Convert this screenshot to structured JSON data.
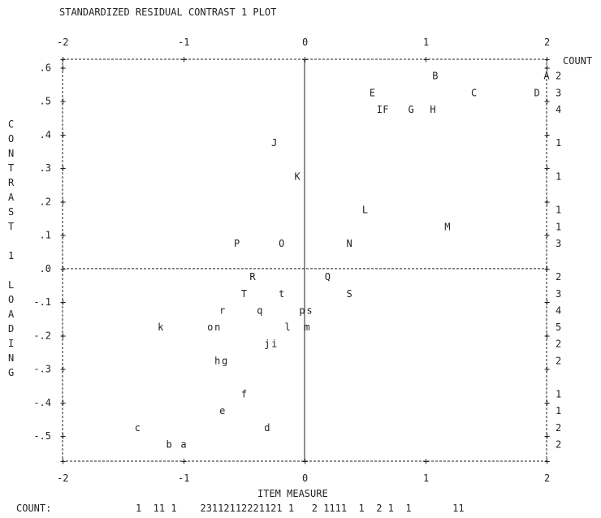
{
  "chart_data": {
    "type": "scatter",
    "title": "STANDARDIZED RESIDUAL CONTRAST 1 PLOT",
    "xlabel": "ITEM MEASURE",
    "ylabel_letters": [
      "C",
      "O",
      "N",
      "T",
      "R",
      "A",
      "S",
      "T",
      "",
      "1",
      "",
      "L",
      "O",
      "A",
      "D",
      "I",
      "N",
      "G"
    ],
    "xlim": [
      -2,
      2
    ],
    "ylim": [
      -0.575,
      0.625
    ],
    "x_ticks": [
      {
        "value": -2,
        "label": "-2"
      },
      {
        "value": -1,
        "label": "-1"
      },
      {
        "value": 0,
        "label": "0"
      },
      {
        "value": 1,
        "label": "1"
      },
      {
        "value": 2,
        "label": "2"
      }
    ],
    "y_ticks": [
      {
        "value": 0.6,
        "label": ".6"
      },
      {
        "value": 0.5,
        "label": ".5"
      },
      {
        "value": 0.4,
        "label": ".4"
      },
      {
        "value": 0.3,
        "label": ".3"
      },
      {
        "value": 0.2,
        "label": ".2"
      },
      {
        "value": 0.1,
        "label": ".1"
      },
      {
        "value": 0.0,
        "label": ".0"
      },
      {
        "value": -0.1,
        "label": "-.1"
      },
      {
        "value": -0.2,
        "label": "-.2"
      },
      {
        "value": -0.3,
        "label": "-.3"
      },
      {
        "value": -0.4,
        "label": "-.4"
      },
      {
        "value": -0.5,
        "label": "-.5"
      }
    ],
    "points": [
      {
        "label": "A",
        "x": 2.0,
        "y": 0.575
      },
      {
        "label": "B",
        "x": 1.08,
        "y": 0.575
      },
      {
        "label": "C",
        "x": 1.4,
        "y": 0.525
      },
      {
        "label": "D",
        "x": 1.92,
        "y": 0.525
      },
      {
        "label": "E",
        "x": 0.56,
        "y": 0.525
      },
      {
        "label": "I",
        "x": 0.62,
        "y": 0.475
      },
      {
        "label": "F",
        "x": 0.67,
        "y": 0.475
      },
      {
        "label": "G",
        "x": 0.88,
        "y": 0.475
      },
      {
        "label": "H",
        "x": 1.06,
        "y": 0.475
      },
      {
        "label": "J",
        "x": -0.25,
        "y": 0.375
      },
      {
        "label": "K",
        "x": -0.06,
        "y": 0.275
      },
      {
        "label": "L",
        "x": 0.5,
        "y": 0.175
      },
      {
        "label": "M",
        "x": 1.18,
        "y": 0.125
      },
      {
        "label": "P",
        "x": -0.56,
        "y": 0.075
      },
      {
        "label": "O",
        "x": -0.19,
        "y": 0.075
      },
      {
        "label": "N",
        "x": 0.37,
        "y": 0.075
      },
      {
        "label": "R",
        "x": -0.43,
        "y": -0.025
      },
      {
        "label": "Q",
        "x": 0.19,
        "y": -0.025
      },
      {
        "label": "T",
        "x": -0.5,
        "y": -0.075
      },
      {
        "label": "t",
        "x": -0.19,
        "y": -0.075
      },
      {
        "label": "S",
        "x": 0.37,
        "y": -0.075
      },
      {
        "label": "r",
        "x": -0.68,
        "y": -0.125
      },
      {
        "label": "q",
        "x": -0.37,
        "y": -0.125
      },
      {
        "label": "p",
        "x": -0.02,
        "y": -0.125
      },
      {
        "label": "s",
        "x": 0.04,
        "y": -0.125
      },
      {
        "label": "k",
        "x": -1.19,
        "y": -0.175
      },
      {
        "label": "o",
        "x": -0.78,
        "y": -0.175
      },
      {
        "label": "n",
        "x": -0.72,
        "y": -0.175
      },
      {
        "label": "l",
        "x": -0.14,
        "y": -0.175
      },
      {
        "label": "m",
        "x": 0.02,
        "y": -0.175
      },
      {
        "label": "j",
        "x": -0.31,
        "y": -0.225
      },
      {
        "label": "i",
        "x": -0.25,
        "y": -0.225
      },
      {
        "label": "h",
        "x": -0.72,
        "y": -0.275
      },
      {
        "label": "g",
        "x": -0.66,
        "y": -0.275
      },
      {
        "label": "f",
        "x": -0.5,
        "y": -0.375
      },
      {
        "label": "e",
        "x": -0.68,
        "y": -0.425
      },
      {
        "label": "c",
        "x": -1.38,
        "y": -0.475
      },
      {
        "label": "d",
        "x": -0.31,
        "y": -0.475
      },
      {
        "label": "b",
        "x": -1.12,
        "y": -0.525
      },
      {
        "label": "a",
        "x": -1.0,
        "y": -0.525
      }
    ],
    "count_label": "COUNT",
    "right_counts": [
      {
        "y": 0.575,
        "text": "2"
      },
      {
        "y": 0.525,
        "text": "3"
      },
      {
        "y": 0.475,
        "text": "4"
      },
      {
        "y": 0.375,
        "text": "1"
      },
      {
        "y": 0.275,
        "text": "1"
      },
      {
        "y": 0.175,
        "text": "1"
      },
      {
        "y": 0.125,
        "text": "1"
      },
      {
        "y": 0.075,
        "text": "3"
      },
      {
        "y": -0.025,
        "text": "2"
      },
      {
        "y": -0.075,
        "text": "3"
      },
      {
        "y": -0.125,
        "text": "4"
      },
      {
        "y": -0.175,
        "text": "5"
      },
      {
        "y": -0.225,
        "text": "2"
      },
      {
        "y": -0.275,
        "text": "2"
      },
      {
        "y": -0.375,
        "text": "1"
      },
      {
        "y": -0.425,
        "text": "1"
      },
      {
        "y": -0.475,
        "text": "2"
      },
      {
        "y": -0.525,
        "text": "2"
      }
    ],
    "bottom_count_label": "COUNT:",
    "bottom_counts": "1  11 1    23112112221121 1   2 1111  1  2 1  1       11"
  }
}
